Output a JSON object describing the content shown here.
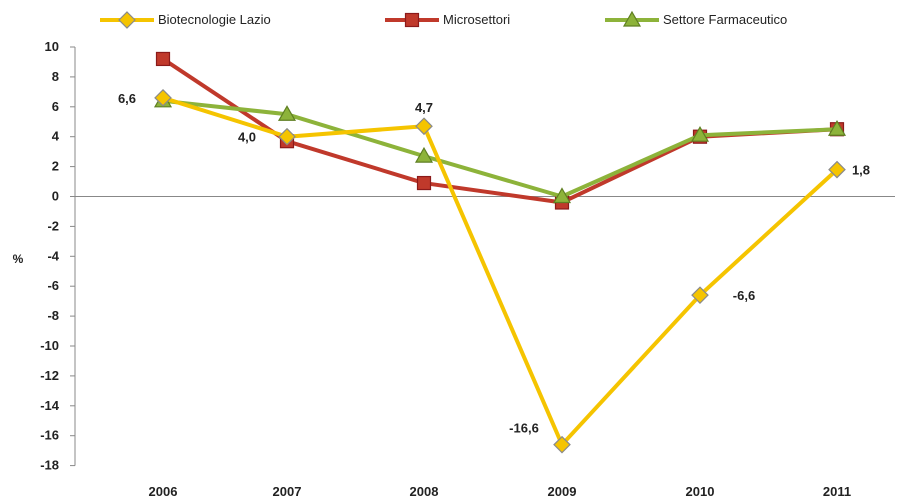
{
  "chart_data": {
    "type": "line",
    "title": "",
    "xlabel": "",
    "ylabel": "%",
    "categories": [
      "2006",
      "2007",
      "2008",
      "2009",
      "2010",
      "2011"
    ],
    "ylim": [
      -18,
      10
    ],
    "yticks": [
      10,
      8,
      6,
      4,
      2,
      0,
      -2,
      -4,
      -6,
      -8,
      -10,
      -12,
      -14,
      -16,
      -18
    ],
    "legend_position": "top",
    "grid": false,
    "series": [
      {
        "name": "Biotecnologie Lazio",
        "color": "#f5c400",
        "marker": "diamond",
        "values": [
          6.6,
          4.0,
          4.7,
          -16.6,
          -6.6,
          1.8
        ],
        "labels": [
          "6,6",
          "4,0",
          "4,7",
          "-16,6",
          "-6,6",
          "1,8"
        ]
      },
      {
        "name": "Microsettori",
        "color": "#c0392b",
        "marker": "square",
        "values": [
          9.2,
          3.7,
          0.9,
          -0.4,
          4.0,
          4.5
        ]
      },
      {
        "name": "Settore Farmaceutico",
        "color": "#8db33a",
        "marker": "triangle",
        "values": [
          6.4,
          5.5,
          2.7,
          0.0,
          4.1,
          4.5
        ]
      }
    ]
  }
}
